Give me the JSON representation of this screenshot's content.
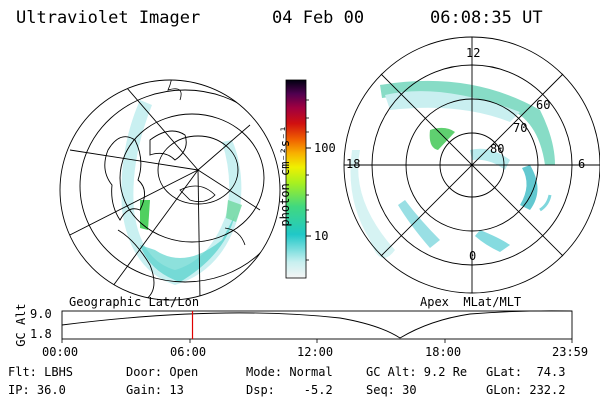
{
  "header": {
    "title": "Ultraviolet Imager",
    "date": "04 Feb 00",
    "time": "06:08:35 UT"
  },
  "colorbar": {
    "unit_label": "photon cm⁻²s⁻¹",
    "tick_labels": [
      "100",
      "10"
    ]
  },
  "left_panel": {
    "caption": "Geographic Lat/Lon"
  },
  "right_panel": {
    "caption": "Apex  MLat/MLT",
    "mlt_labels": {
      "top": "12",
      "bottom": "0",
      "left": "18",
      "right": "6"
    },
    "mlat_labels": [
      "60",
      "70",
      "80"
    ]
  },
  "timeline": {
    "axis_title": "GC Alt",
    "y_ticks": [
      "9.0",
      "1.8"
    ],
    "x_ticks": [
      "00:00",
      "06:00",
      "12:00",
      "18:00",
      "23:59"
    ],
    "current_time_fraction": 0.2559,
    "marker_color": "#e00000"
  },
  "status": {
    "filter": "Flt: LBHS",
    "ip": "IP: 36.0",
    "door": "Door: Open",
    "gain": "Gain: 13",
    "mode": "Mode: Normal",
    "dsp": "Dsp:    -5.2",
    "gc_alt": "GC Alt: 9.2 Re",
    "seq": "Seq: 30",
    "glat": "GLat:  74.3",
    "glon": "GLon: 232.2"
  }
}
